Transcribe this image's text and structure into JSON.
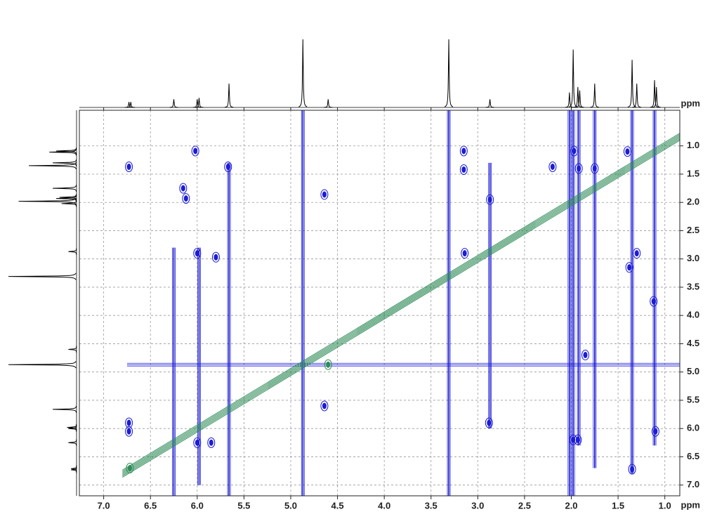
{
  "chart_data": {
    "type": "nmr2d",
    "xlabel": "ppm",
    "ylabel": "ppm",
    "xlim": [
      7.26,
      0.84
    ],
    "ylim": [
      0.37,
      7.19
    ],
    "xticks": [
      {
        "value": 7,
        "label": "7.0"
      },
      6.5,
      {
        "value": 6,
        "label": "6.0"
      },
      5.5,
      {
        "value": 5,
        "label": "5.0"
      },
      4.5,
      {
        "value": 4,
        "label": "4.0"
      },
      3.5,
      {
        "value": 3,
        "label": "3.0"
      },
      2.5,
      {
        "value": 2,
        "label": "2.0"
      },
      1.5,
      {
        "value": 1,
        "label": "1.0"
      }
    ],
    "yticks": [
      {
        "value": 1,
        "label": "1.0"
      },
      1.5,
      {
        "value": 2,
        "label": "2.0"
      },
      2.5,
      {
        "value": 3,
        "label": "3.0"
      },
      3.5,
      {
        "value": 4,
        "label": "4.0"
      },
      4.5,
      {
        "value": 5,
        "label": "5.0"
      },
      5.5,
      {
        "value": 6,
        "label": "6.0"
      },
      6.5,
      {
        "value": 7,
        "label": "7.0"
      }
    ],
    "grid": true,
    "positive_color": "#1c1cd6",
    "negative_color": "#2e8b57",
    "projection_color": "#000000",
    "projection": {
      "x": [
        6.73,
        6.71,
        6.25,
        6.0,
        5.98,
        5.66,
        4.87,
        4.6,
        3.31,
        2.87,
        2.02,
        1.98,
        1.93,
        1.91,
        1.75,
        1.35,
        1.3,
        1.11,
        1.09
      ],
      "height": [
        8,
        8,
        12,
        12,
        14,
        35,
        100,
        12,
        100,
        12,
        22,
        85,
        30,
        25,
        35,
        70,
        35,
        40,
        30
      ]
    },
    "streaks": {
      "x": [
        6.25,
        5.98,
        5.66,
        4.87,
        3.31,
        2.87,
        2.02,
        1.98,
        1.92,
        1.75,
        1.35,
        1.11
      ],
      "y_from": [
        2.8,
        2.8,
        1.3,
        0.37,
        0.37,
        1.3,
        0.37,
        0.37,
        0.37,
        0.37,
        0.37,
        0.37
      ],
      "y_to": [
        7.19,
        7.0,
        7.19,
        7.19,
        7.19,
        6.0,
        7.19,
        7.19,
        6.3,
        6.7,
        6.8,
        6.3
      ]
    },
    "h_streak": {
      "y": 4.87,
      "x_from": 6.75,
      "x_to": 0.84
    },
    "diagonal": {
      "from": 6.8,
      "to": 0.84
    },
    "positive_peaks": {
      "x": [
        6.73,
        6.02,
        5.67,
        6.15,
        6.12,
        4.64,
        3.15,
        3.15,
        3.14,
        2.87,
        6.0,
        5.8,
        1.97,
        1.92,
        1.75,
        2.2,
        1.4,
        1.38,
        1.12,
        1.3,
        6.73,
        6.73,
        6.0,
        5.85,
        1.35,
        1.1,
        1.85,
        1.98,
        1.93,
        4.64,
        2.88
      ],
      "y": [
        1.37,
        1.09,
        1.37,
        1.75,
        1.93,
        1.86,
        1.09,
        1.42,
        2.9,
        1.95,
        2.9,
        2.97,
        1.09,
        1.4,
        1.4,
        1.37,
        1.1,
        3.15,
        3.75,
        2.9,
        5.9,
        6.05,
        6.25,
        6.25,
        6.72,
        6.05,
        4.7,
        6.2,
        6.2,
        5.6,
        5.9
      ]
    },
    "negative_peaks": {
      "x": [
        4.6,
        6.72
      ],
      "y": [
        4.87,
        6.7
      ]
    }
  }
}
